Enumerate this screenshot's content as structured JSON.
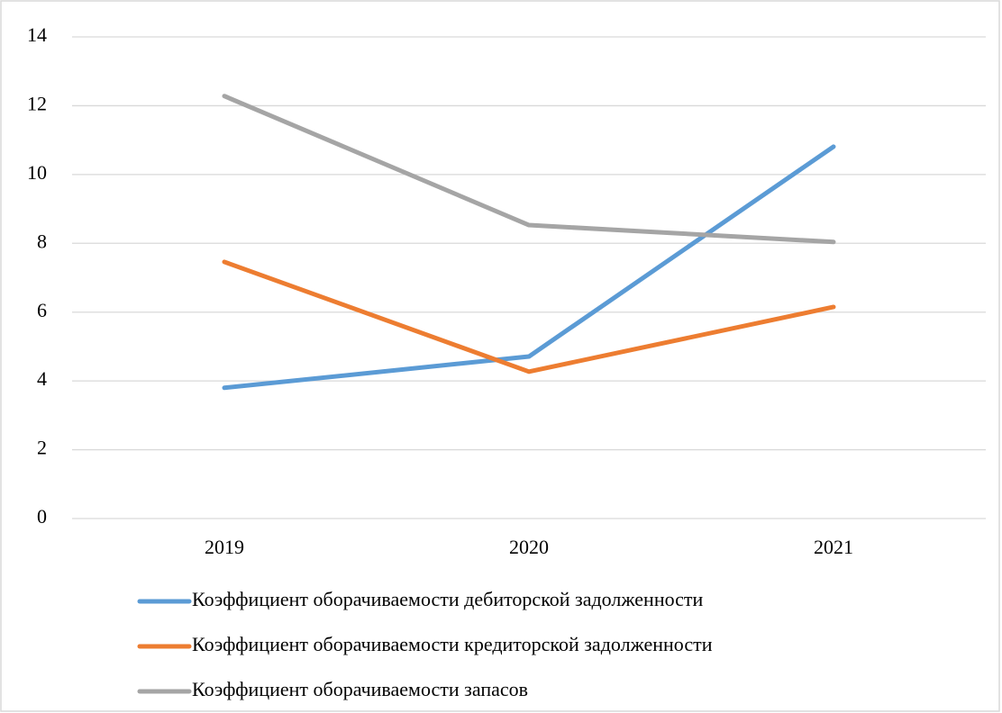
{
  "chart_data": {
    "type": "line",
    "categories": [
      "2019",
      "2020",
      "2021"
    ],
    "series": [
      {
        "name": "Коэффициент оборачиваемости дебиторской задолженности",
        "color": "#5b9bd5",
        "values": [
          3.8,
          4.71,
          10.81
        ]
      },
      {
        "name": "Коэффициент оборачиваемости кредиторской задолженности",
        "color": "#ed7d31",
        "values": [
          7.46,
          4.27,
          6.15
        ]
      },
      {
        "name": "Коэффициент оборачиваемости запасов",
        "color": "#a5a5a5",
        "values": [
          12.28,
          8.53,
          8.04
        ]
      }
    ],
    "ylim": [
      0,
      14
    ],
    "yticks": [
      0,
      2,
      4,
      6,
      8,
      10,
      12,
      14
    ],
    "grid": true,
    "legend": "bottom"
  }
}
